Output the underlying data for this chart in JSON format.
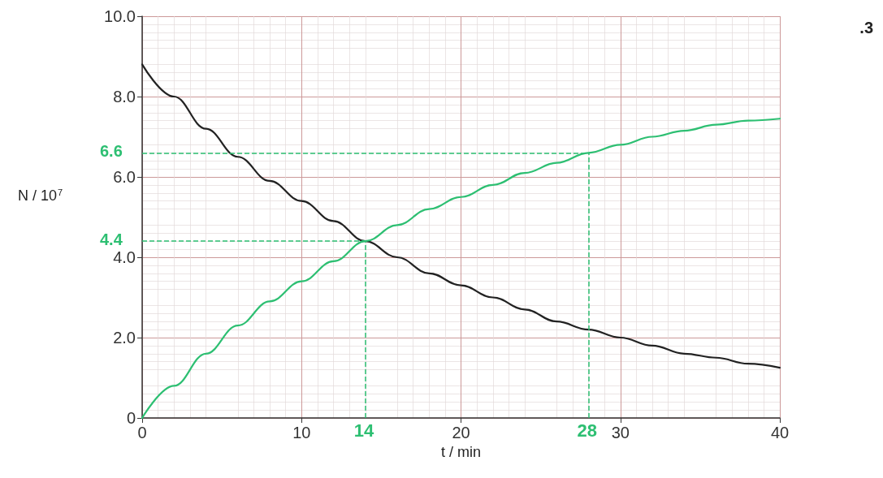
{
  "chart_data": {
    "type": "line",
    "xlabel": "t / min",
    "ylabel": "N / 10$^{7}$",
    "x": [
      0,
      2,
      4,
      6,
      8,
      10,
      12,
      14,
      16,
      18,
      20,
      22,
      24,
      26,
      28,
      30,
      32,
      34,
      36,
      38,
      40
    ],
    "series": [
      {
        "color": "#222222",
        "values": [
          8.8,
          8.0,
          7.2,
          6.5,
          5.9,
          5.4,
          4.9,
          4.4,
          4.0,
          3.6,
          3.3,
          3.0,
          2.7,
          2.4,
          2.2,
          2.0,
          1.8,
          1.6,
          1.5,
          1.35,
          1.25
        ]
      },
      {
        "color": "#2dbf72",
        "values": [
          0,
          0.8,
          1.6,
          2.3,
          2.9,
          3.4,
          3.9,
          4.4,
          4.8,
          5.2,
          5.5,
          5.8,
          6.1,
          6.35,
          6.6,
          6.8,
          7.0,
          7.15,
          7.3,
          7.4,
          7.45
        ]
      }
    ],
    "xlim": [
      0,
      40
    ],
    "xticks": [
      0,
      10,
      20,
      30,
      40
    ],
    "ylim": [
      0,
      10
    ],
    "yticks": [
      0,
      {
        "value": 2,
        "label": "2.0"
      },
      {
        "value": 4,
        "label": "4.0"
      },
      {
        "value": 6,
        "label": "6.0"
      },
      {
        "value": 8,
        "label": "8.0"
      },
      {
        "value": 10,
        "label": "10.0"
      }
    ],
    "grid": true,
    "marker": "none",
    "line_style": "solid",
    "ref_lines": [
      {
        "axis": "y",
        "value": 4.4,
        "label": "4.4",
        "color": "#2dbf72",
        "line_style": "dashed"
      },
      {
        "axis": "x",
        "value": 14,
        "label": "14",
        "color": "#2dbf72",
        "line_style": "dashed"
      },
      {
        "axis": "y",
        "value": 6.6,
        "label": "6.6",
        "color": "#2dbf72",
        "line_style": "dashed"
      },
      {
        "axis": "x",
        "value": 28,
        "label": "28",
        "color": "#2dbf72",
        "line_style": "dashed"
      }
    ],
    "annotations": [
      ".3"
    ]
  }
}
